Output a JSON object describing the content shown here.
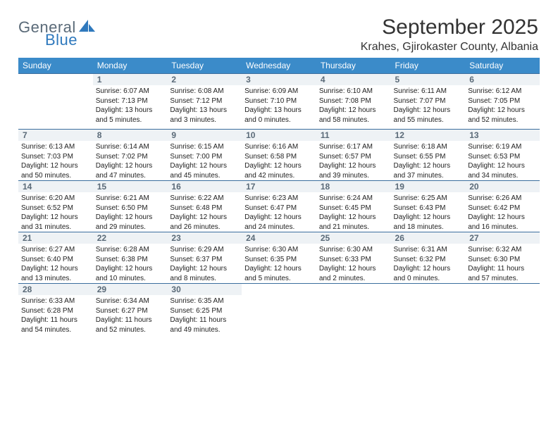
{
  "branding": {
    "logo_general": "General",
    "logo_blue": "Blue",
    "logo_sail_color": "#2f79bd",
    "logo_general_color": "#5a6a78"
  },
  "header": {
    "month_title": "September 2025",
    "location": "Krahes, Gjirokaster County, Albania"
  },
  "colors": {
    "header_bg": "#3b8bc9",
    "row_divider": "#3b6e9e",
    "daynum_bg": "#eef2f5",
    "daynum_color": "#5a6a78",
    "text": "#222222",
    "page_bg": "#ffffff"
  },
  "fonts": {
    "month_title_pt": 30,
    "location_pt": 16,
    "dow_pt": 12,
    "daynum_pt": 12,
    "body_pt": 10
  },
  "days_of_week": [
    "Sunday",
    "Monday",
    "Tuesday",
    "Wednesday",
    "Thursday",
    "Friday",
    "Saturday"
  ],
  "weeks": [
    [
      {
        "day": "",
        "sunrise": "",
        "sunset": "",
        "daylight1": "",
        "daylight2": ""
      },
      {
        "day": "1",
        "sunrise": "Sunrise: 6:07 AM",
        "sunset": "Sunset: 7:13 PM",
        "daylight1": "Daylight: 13 hours",
        "daylight2": "and 5 minutes."
      },
      {
        "day": "2",
        "sunrise": "Sunrise: 6:08 AM",
        "sunset": "Sunset: 7:12 PM",
        "daylight1": "Daylight: 13 hours",
        "daylight2": "and 3 minutes."
      },
      {
        "day": "3",
        "sunrise": "Sunrise: 6:09 AM",
        "sunset": "Sunset: 7:10 PM",
        "daylight1": "Daylight: 13 hours",
        "daylight2": "and 0 minutes."
      },
      {
        "day": "4",
        "sunrise": "Sunrise: 6:10 AM",
        "sunset": "Sunset: 7:08 PM",
        "daylight1": "Daylight: 12 hours",
        "daylight2": "and 58 minutes."
      },
      {
        "day": "5",
        "sunrise": "Sunrise: 6:11 AM",
        "sunset": "Sunset: 7:07 PM",
        "daylight1": "Daylight: 12 hours",
        "daylight2": "and 55 minutes."
      },
      {
        "day": "6",
        "sunrise": "Sunrise: 6:12 AM",
        "sunset": "Sunset: 7:05 PM",
        "daylight1": "Daylight: 12 hours",
        "daylight2": "and 52 minutes."
      }
    ],
    [
      {
        "day": "7",
        "sunrise": "Sunrise: 6:13 AM",
        "sunset": "Sunset: 7:03 PM",
        "daylight1": "Daylight: 12 hours",
        "daylight2": "and 50 minutes."
      },
      {
        "day": "8",
        "sunrise": "Sunrise: 6:14 AM",
        "sunset": "Sunset: 7:02 PM",
        "daylight1": "Daylight: 12 hours",
        "daylight2": "and 47 minutes."
      },
      {
        "day": "9",
        "sunrise": "Sunrise: 6:15 AM",
        "sunset": "Sunset: 7:00 PM",
        "daylight1": "Daylight: 12 hours",
        "daylight2": "and 45 minutes."
      },
      {
        "day": "10",
        "sunrise": "Sunrise: 6:16 AM",
        "sunset": "Sunset: 6:58 PM",
        "daylight1": "Daylight: 12 hours",
        "daylight2": "and 42 minutes."
      },
      {
        "day": "11",
        "sunrise": "Sunrise: 6:17 AM",
        "sunset": "Sunset: 6:57 PM",
        "daylight1": "Daylight: 12 hours",
        "daylight2": "and 39 minutes."
      },
      {
        "day": "12",
        "sunrise": "Sunrise: 6:18 AM",
        "sunset": "Sunset: 6:55 PM",
        "daylight1": "Daylight: 12 hours",
        "daylight2": "and 37 minutes."
      },
      {
        "day": "13",
        "sunrise": "Sunrise: 6:19 AM",
        "sunset": "Sunset: 6:53 PM",
        "daylight1": "Daylight: 12 hours",
        "daylight2": "and 34 minutes."
      }
    ],
    [
      {
        "day": "14",
        "sunrise": "Sunrise: 6:20 AM",
        "sunset": "Sunset: 6:52 PM",
        "daylight1": "Daylight: 12 hours",
        "daylight2": "and 31 minutes."
      },
      {
        "day": "15",
        "sunrise": "Sunrise: 6:21 AM",
        "sunset": "Sunset: 6:50 PM",
        "daylight1": "Daylight: 12 hours",
        "daylight2": "and 29 minutes."
      },
      {
        "day": "16",
        "sunrise": "Sunrise: 6:22 AM",
        "sunset": "Sunset: 6:48 PM",
        "daylight1": "Daylight: 12 hours",
        "daylight2": "and 26 minutes."
      },
      {
        "day": "17",
        "sunrise": "Sunrise: 6:23 AM",
        "sunset": "Sunset: 6:47 PM",
        "daylight1": "Daylight: 12 hours",
        "daylight2": "and 24 minutes."
      },
      {
        "day": "18",
        "sunrise": "Sunrise: 6:24 AM",
        "sunset": "Sunset: 6:45 PM",
        "daylight1": "Daylight: 12 hours",
        "daylight2": "and 21 minutes."
      },
      {
        "day": "19",
        "sunrise": "Sunrise: 6:25 AM",
        "sunset": "Sunset: 6:43 PM",
        "daylight1": "Daylight: 12 hours",
        "daylight2": "and 18 minutes."
      },
      {
        "day": "20",
        "sunrise": "Sunrise: 6:26 AM",
        "sunset": "Sunset: 6:42 PM",
        "daylight1": "Daylight: 12 hours",
        "daylight2": "and 16 minutes."
      }
    ],
    [
      {
        "day": "21",
        "sunrise": "Sunrise: 6:27 AM",
        "sunset": "Sunset: 6:40 PM",
        "daylight1": "Daylight: 12 hours",
        "daylight2": "and 13 minutes."
      },
      {
        "day": "22",
        "sunrise": "Sunrise: 6:28 AM",
        "sunset": "Sunset: 6:38 PM",
        "daylight1": "Daylight: 12 hours",
        "daylight2": "and 10 minutes."
      },
      {
        "day": "23",
        "sunrise": "Sunrise: 6:29 AM",
        "sunset": "Sunset: 6:37 PM",
        "daylight1": "Daylight: 12 hours",
        "daylight2": "and 8 minutes."
      },
      {
        "day": "24",
        "sunrise": "Sunrise: 6:30 AM",
        "sunset": "Sunset: 6:35 PM",
        "daylight1": "Daylight: 12 hours",
        "daylight2": "and 5 minutes."
      },
      {
        "day": "25",
        "sunrise": "Sunrise: 6:30 AM",
        "sunset": "Sunset: 6:33 PM",
        "daylight1": "Daylight: 12 hours",
        "daylight2": "and 2 minutes."
      },
      {
        "day": "26",
        "sunrise": "Sunrise: 6:31 AM",
        "sunset": "Sunset: 6:32 PM",
        "daylight1": "Daylight: 12 hours",
        "daylight2": "and 0 minutes."
      },
      {
        "day": "27",
        "sunrise": "Sunrise: 6:32 AM",
        "sunset": "Sunset: 6:30 PM",
        "daylight1": "Daylight: 11 hours",
        "daylight2": "and 57 minutes."
      }
    ],
    [
      {
        "day": "28",
        "sunrise": "Sunrise: 6:33 AM",
        "sunset": "Sunset: 6:28 PM",
        "daylight1": "Daylight: 11 hours",
        "daylight2": "and 54 minutes."
      },
      {
        "day": "29",
        "sunrise": "Sunrise: 6:34 AM",
        "sunset": "Sunset: 6:27 PM",
        "daylight1": "Daylight: 11 hours",
        "daylight2": "and 52 minutes."
      },
      {
        "day": "30",
        "sunrise": "Sunrise: 6:35 AM",
        "sunset": "Sunset: 6:25 PM",
        "daylight1": "Daylight: 11 hours",
        "daylight2": "and 49 minutes."
      },
      {
        "day": "",
        "sunrise": "",
        "sunset": "",
        "daylight1": "",
        "daylight2": ""
      },
      {
        "day": "",
        "sunrise": "",
        "sunset": "",
        "daylight1": "",
        "daylight2": ""
      },
      {
        "day": "",
        "sunrise": "",
        "sunset": "",
        "daylight1": "",
        "daylight2": ""
      },
      {
        "day": "",
        "sunrise": "",
        "sunset": "",
        "daylight1": "",
        "daylight2": ""
      }
    ]
  ]
}
